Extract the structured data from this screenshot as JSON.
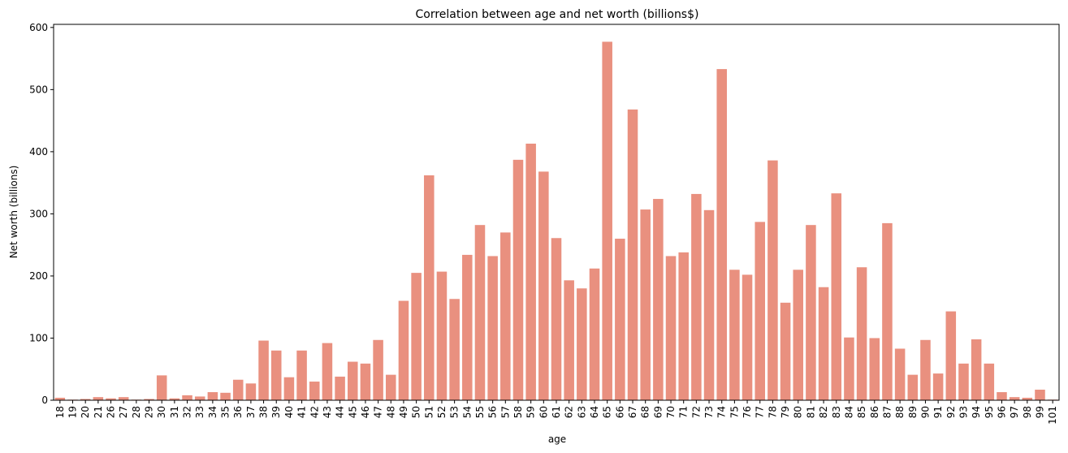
{
  "chart_data": {
    "type": "bar",
    "title": "Correlation between age and net worth (billions$)",
    "xlabel": "age",
    "ylabel": "Net worth (billions)",
    "ylim": [
      0,
      605
    ],
    "yticks": [
      0,
      100,
      200,
      300,
      400,
      500,
      600
    ],
    "grid": false,
    "bar_color": "#e9907f",
    "categories": [
      "18",
      "19",
      "20",
      "21",
      "26",
      "27",
      "28",
      "29",
      "30",
      "31",
      "32",
      "33",
      "34",
      "35",
      "36",
      "37",
      "38",
      "39",
      "40",
      "41",
      "42",
      "43",
      "44",
      "45",
      "46",
      "47",
      "48",
      "49",
      "50",
      "51",
      "52",
      "53",
      "54",
      "55",
      "56",
      "57",
      "58",
      "59",
      "60",
      "61",
      "62",
      "63",
      "64",
      "65",
      "66",
      "67",
      "68",
      "69",
      "70",
      "71",
      "72",
      "73",
      "74",
      "75",
      "76",
      "77",
      "78",
      "79",
      "80",
      "81",
      "82",
      "83",
      "84",
      "85",
      "86",
      "87",
      "88",
      "89",
      "90",
      "91",
      "92",
      "93",
      "94",
      "95",
      "96",
      "97",
      "98",
      "99",
      "101"
    ],
    "values": [
      4,
      1,
      2,
      5,
      3,
      5,
      1,
      2,
      40,
      3,
      8,
      6,
      13,
      12,
      33,
      27,
      96,
      80,
      37,
      80,
      30,
      92,
      38,
      62,
      59,
      97,
      41,
      160,
      205,
      362,
      207,
      163,
      234,
      282,
      232,
      270,
      387,
      413,
      368,
      261,
      193,
      180,
      212,
      577,
      260,
      468,
      307,
      324,
      232,
      238,
      332,
      306,
      533,
      210,
      202,
      287,
      386,
      157,
      210,
      282,
      182,
      333,
      101,
      214,
      100,
      285,
      83,
      41,
      97,
      43,
      143,
      59,
      98,
      59,
      13,
      5,
      4,
      17,
      1
    ]
  }
}
